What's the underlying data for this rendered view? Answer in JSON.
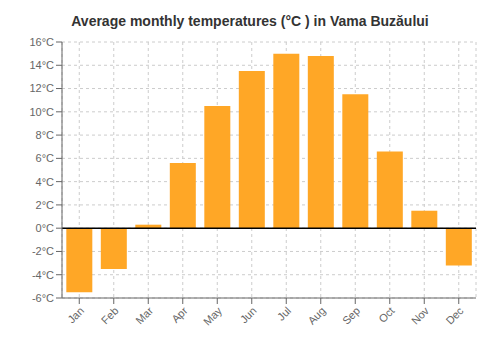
{
  "chart_data": {
    "type": "bar",
    "title": "Average monthly temperatures (°C ) in Vama Buzăului",
    "categories": [
      "Jan",
      "Feb",
      "Mar",
      "Apr",
      "May",
      "Jun",
      "Jul",
      "Aug",
      "Sep",
      "Oct",
      "Nov",
      "Dec"
    ],
    "values": [
      -5.5,
      -3.5,
      0.3,
      5.6,
      10.5,
      13.5,
      15.0,
      14.8,
      11.5,
      6.6,
      1.5,
      -3.2
    ],
    "color": "#FFA726",
    "ylim": [
      -6,
      16
    ],
    "yticks": [
      {
        "value": -6,
        "label": "-6°C"
      },
      {
        "value": -4,
        "label": "-4°C"
      },
      {
        "value": -2,
        "label": "-2°C"
      },
      {
        "value": 0,
        "label": "0°C"
      },
      {
        "value": 2,
        "label": "2°C"
      },
      {
        "value": 4,
        "label": "4°C"
      },
      {
        "value": 6,
        "label": "6°C"
      },
      {
        "value": 8,
        "label": "8°C"
      },
      {
        "value": 10,
        "label": "10°C"
      },
      {
        "value": 12,
        "label": "12°C"
      },
      {
        "value": 14,
        "label": "14°C"
      },
      {
        "value": 16,
        "label": "16°C"
      }
    ],
    "grid": true
  }
}
